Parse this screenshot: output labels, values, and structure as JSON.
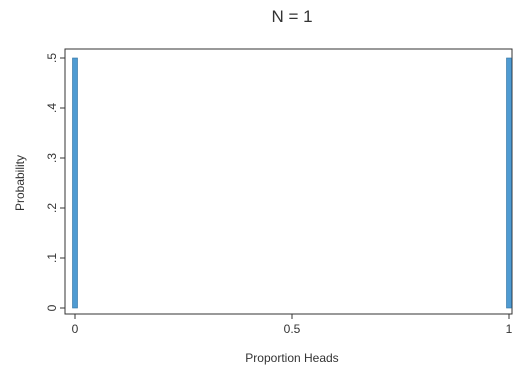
{
  "chart_data": {
    "type": "bar",
    "title": "N = 1",
    "xlabel": "Proportion Heads",
    "ylabel": "Probability",
    "xlim": [
      0,
      1
    ],
    "ylim": [
      0,
      0.5
    ],
    "x_ticks": [
      {
        "value": 0,
        "label": "0"
      },
      {
        "value": 0.5,
        "label": "0.5"
      },
      {
        "value": 1,
        "label": "1"
      }
    ],
    "y_ticks": [
      {
        "value": 0,
        "label": "0"
      },
      {
        "value": 0.1,
        "label": ".1"
      },
      {
        "value": 0.2,
        "label": ".2"
      },
      {
        "value": 0.3,
        "label": ".3"
      },
      {
        "value": 0.4,
        "label": ".4"
      },
      {
        "value": 0.5,
        "label": ".5"
      }
    ],
    "x": [
      0,
      1
    ],
    "values": [
      0.5,
      0.5
    ],
    "bar_color": "#4f9bd2",
    "bar_outline_color": "#2f6f9f",
    "grid": false,
    "legend": "none"
  }
}
